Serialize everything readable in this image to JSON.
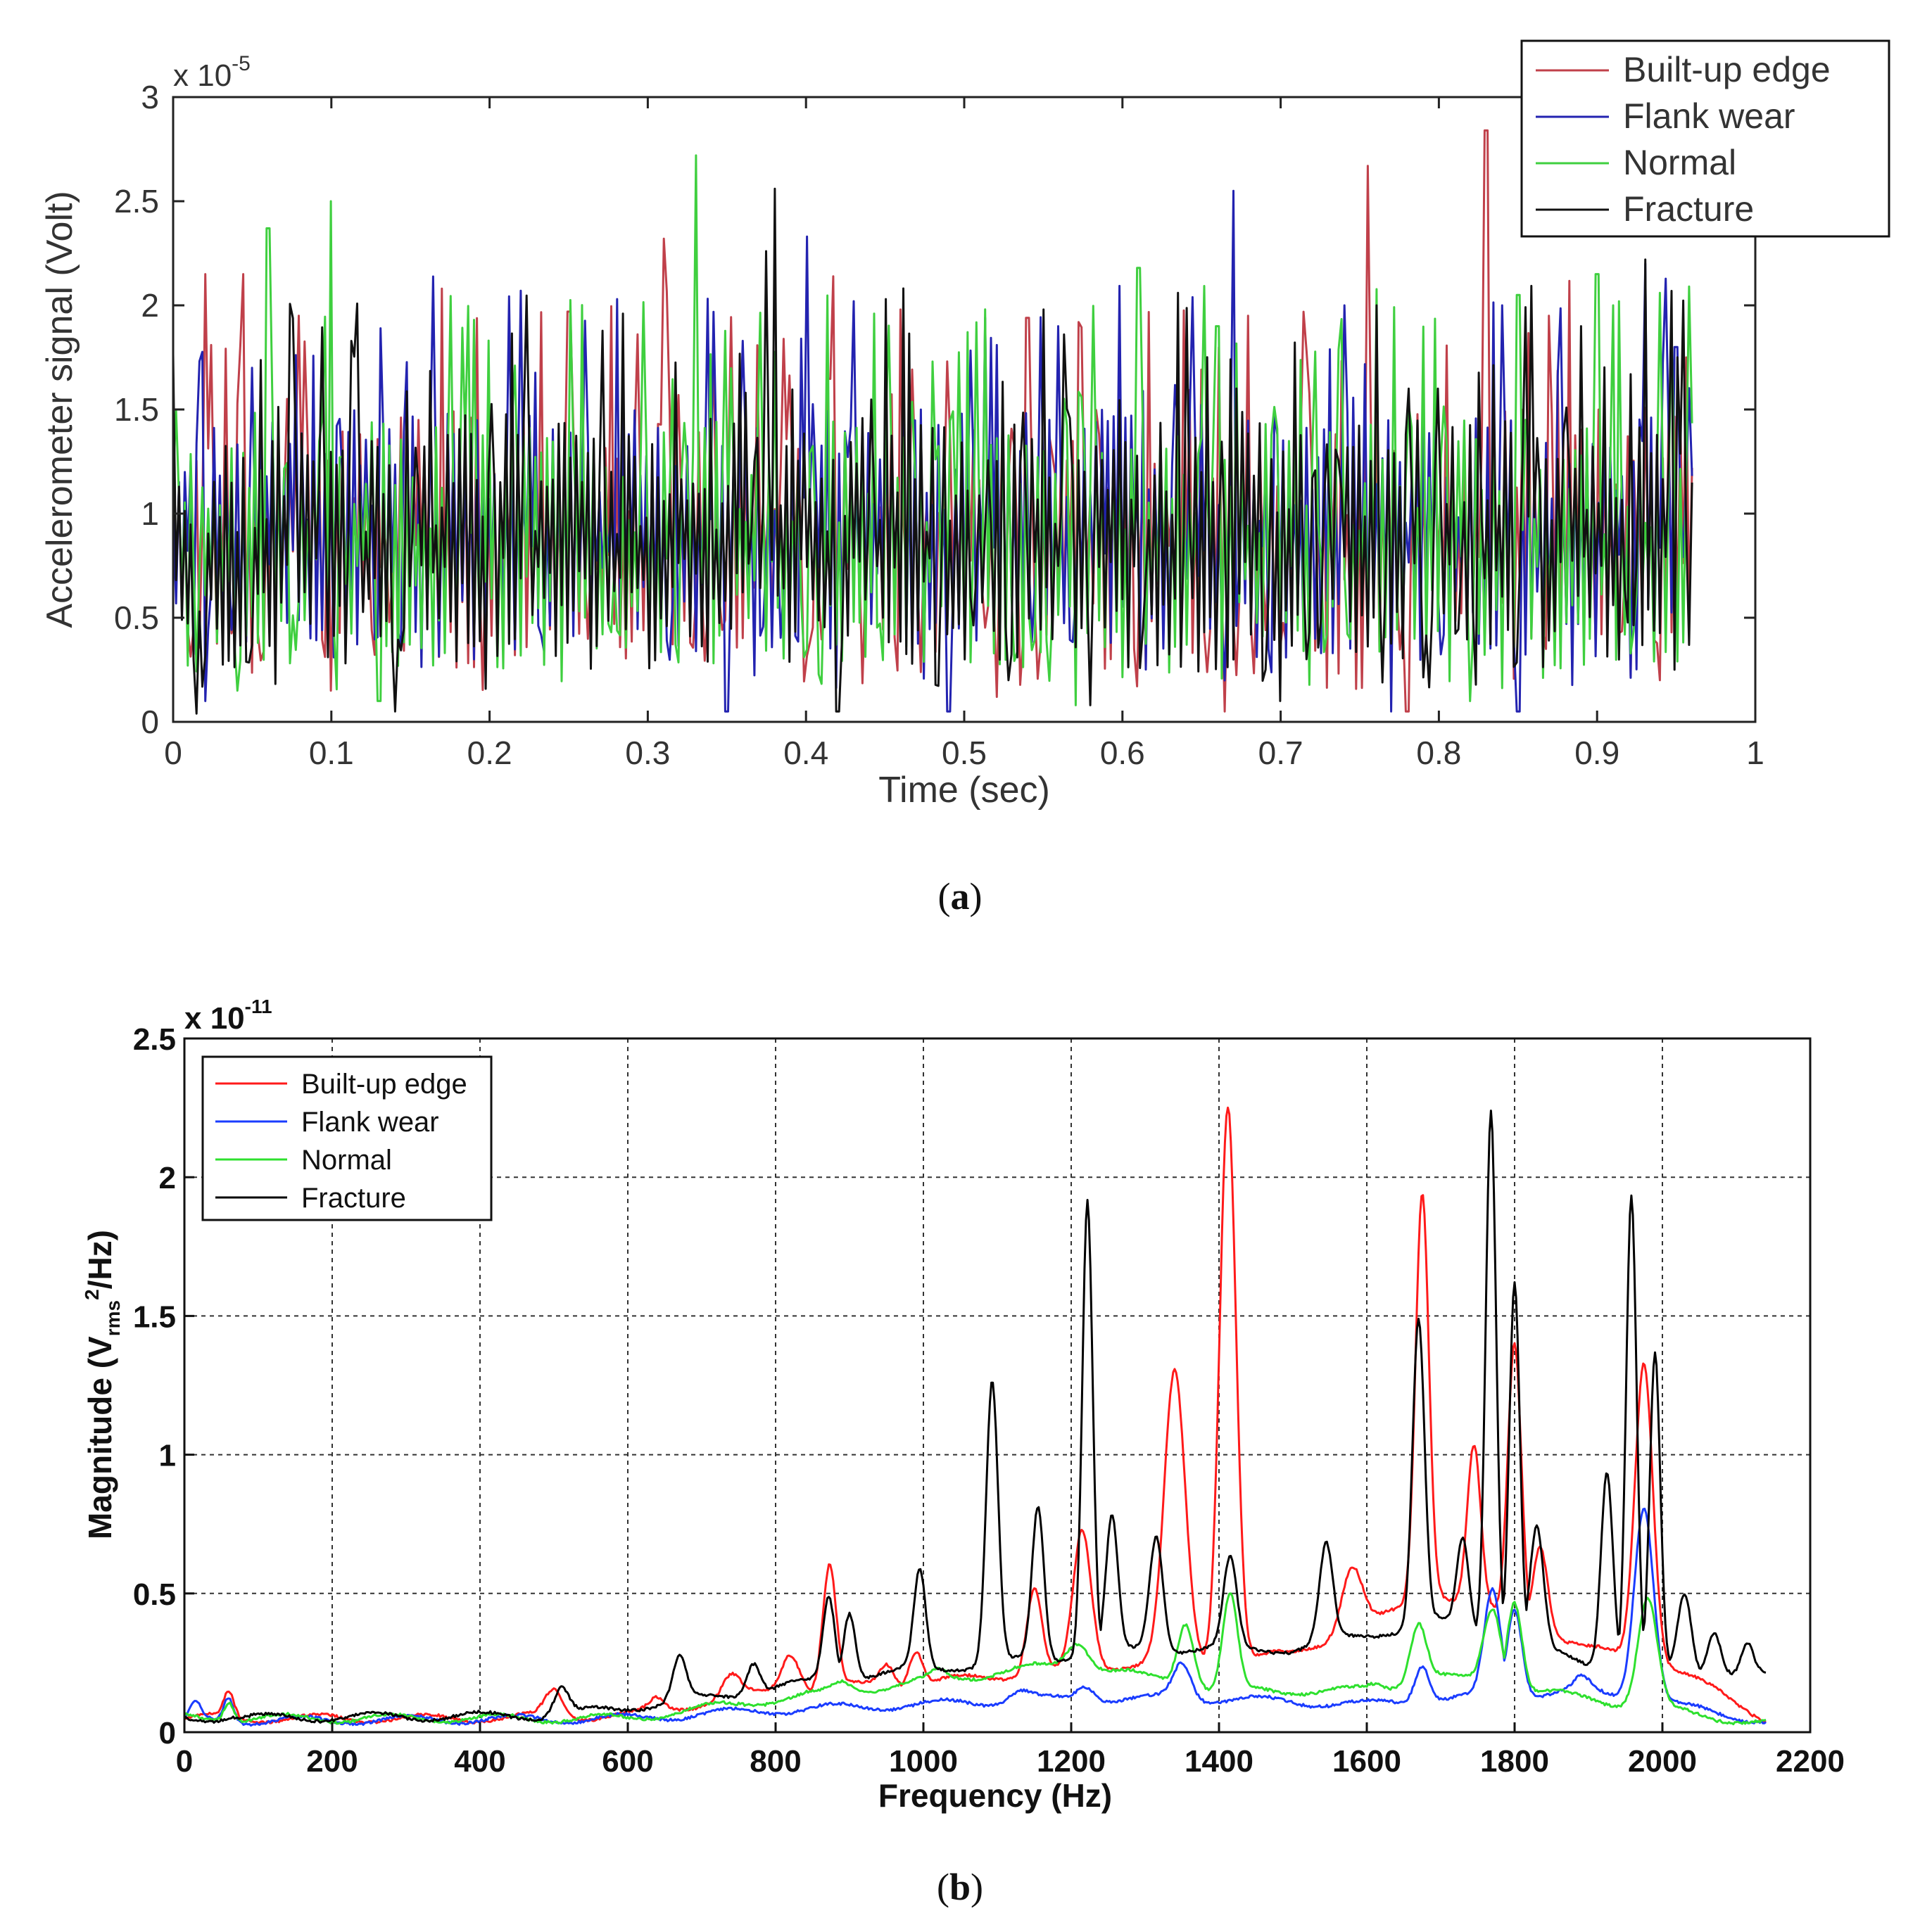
{
  "chart_data": [
    {
      "id": "a",
      "type": "line",
      "panel_label": "a",
      "xlabel": "Time (sec)",
      "ylabel": "Accelerometer signal (Volt)",
      "y_exponent_label": "x 10",
      "y_exponent_power": "-5",
      "xlim": [
        0,
        1
      ],
      "ylim": [
        0,
        3
      ],
      "xticks": [
        0,
        0.1,
        0.2,
        0.3,
        0.4,
        0.5,
        0.6,
        0.7,
        0.8,
        0.9,
        1
      ],
      "xtick_labels": [
        "0",
        "0.1",
        "0.2",
        "0.3",
        "0.4",
        "0.5",
        "0.6",
        "0.7",
        "0.8",
        "0.9",
        "1"
      ],
      "yticks": [
        0,
        0.5,
        1,
        1.5,
        2,
        2.5,
        3
      ],
      "ytick_labels": [
        "0",
        "0.5",
        "1",
        "1.5",
        "2",
        "2.5",
        "3"
      ],
      "grid": false,
      "legend_position": "top-right",
      "x_end": 0.96,
      "series": [
        {
          "name": "Built-up edge",
          "color": "#c0404a",
          "baseline": 0.9,
          "peaks": [
            [
              0.02,
              2.15
            ],
            [
              0.045,
              2.15
            ],
            [
              0.08,
              1.95
            ],
            [
              0.1,
              2.0
            ],
            [
              0.17,
              2.08
            ],
            [
              0.25,
              1.97
            ],
            [
              0.31,
              2.32
            ],
            [
              0.46,
              1.98
            ],
            [
              0.54,
              1.94
            ],
            [
              0.68,
              1.95
            ],
            [
              0.755,
              2.67
            ],
            [
              0.83,
              2.84
            ],
            [
              0.87,
              1.95
            ]
          ],
          "dips": [
            [
              0.1,
              0.15
            ],
            [
              0.52,
              0.12
            ],
            [
              0.665,
              0.05
            ],
            [
              0.78,
              0.05
            ],
            [
              0.94,
              0.2
            ]
          ]
        },
        {
          "name": "Flank wear",
          "color": "#2323b0",
          "baseline": 0.9,
          "peaks": [
            [
              0.05,
              1.7
            ],
            [
              0.22,
              2.07
            ],
            [
              0.28,
              2.03
            ],
            [
              0.4,
              2.33
            ],
            [
              0.43,
              2.02
            ],
            [
              0.56,
              1.9
            ],
            [
              0.67,
              2.55
            ],
            [
              0.74,
              2.0
            ],
            [
              0.84,
              2.0
            ],
            [
              0.93,
              2.2
            ],
            [
              0.95,
              1.8
            ]
          ],
          "dips": [
            [
              0.02,
              0.1
            ],
            [
              0.35,
              0.05
            ],
            [
              0.49,
              0.05
            ],
            [
              0.77,
              0.05
            ],
            [
              0.85,
              0.05
            ]
          ]
        },
        {
          "name": "Normal",
          "color": "#3fcf3f",
          "baseline": 0.85,
          "peaks": [
            [
              0.06,
              2.37
            ],
            [
              0.1,
              2.5
            ],
            [
              0.33,
              2.72
            ],
            [
              0.48,
              1.73
            ],
            [
              0.61,
              2.18
            ],
            [
              0.66,
              1.9
            ],
            [
              0.85,
              2.05
            ],
            [
              0.9,
              2.15
            ],
            [
              0.91,
              2.0
            ],
            [
              0.94,
              2.06
            ]
          ],
          "dips": [
            [
              0.04,
              0.15
            ],
            [
              0.13,
              0.1
            ],
            [
              0.57,
              0.08
            ],
            [
              0.82,
              0.1
            ]
          ]
        },
        {
          "name": "Fracture",
          "color": "#111111",
          "baseline": 0.85,
          "peaks": [
            [
              0.38,
              2.56
            ],
            [
              0.375,
              2.26
            ],
            [
              0.45,
              2.03
            ],
            [
              0.55,
              1.98
            ],
            [
              0.76,
              2.0
            ],
            [
              0.89,
              1.9
            ],
            [
              0.93,
              2.22
            ],
            [
              0.8,
              1.6
            ]
          ],
          "dips": [
            [
              0.015,
              0.04
            ],
            [
              0.14,
              0.05
            ],
            [
              0.42,
              0.05
            ],
            [
              0.58,
              0.08
            ],
            [
              0.7,
              0.1
            ]
          ]
        }
      ]
    },
    {
      "id": "b",
      "type": "line",
      "panel_label": "b",
      "xlabel": "Frequency (Hz)",
      "ylabel_main": "Magnitude (V",
      "ylabel_sub": "rms",
      "ylabel_sup": "2",
      "ylabel_tail": "/Hz)",
      "y_exponent_label": "x 10",
      "y_exponent_power": "-11",
      "xlim": [
        0,
        2200
      ],
      "ylim": [
        0,
        2.5
      ],
      "xticks": [
        0,
        200,
        400,
        600,
        800,
        1000,
        1200,
        1400,
        1600,
        1800,
        2000,
        2200
      ],
      "xtick_labels": [
        "0",
        "200",
        "400",
        "600",
        "800",
        "1000",
        "1200",
        "1400",
        "1600",
        "1800",
        "2000",
        "2200"
      ],
      "yticks": [
        0,
        0.5,
        1,
        1.5,
        2,
        2.5
      ],
      "ytick_labels": [
        "0",
        "0.5",
        "1",
        "1.5",
        "2",
        "2.5"
      ],
      "grid": true,
      "legend_position": "top-left",
      "x_end": 2140,
      "series": [
        {
          "name": "Built-up edge",
          "color": "#ff1a1a",
          "floor": [
            [
              0,
              0.05
            ],
            [
              400,
              0.05
            ],
            [
              600,
              0.06
            ],
            [
              800,
              0.15
            ],
            [
              1000,
              0.18
            ],
            [
              1100,
              0.2
            ],
            [
              1300,
              0.25
            ],
            [
              1500,
              0.28
            ],
            [
              1700,
              0.5
            ],
            [
              1900,
              0.3
            ],
            [
              2000,
              0.25
            ],
            [
              2140,
              0.05
            ]
          ],
          "peaks": [
            [
              60,
              0.14,
              7
            ],
            [
              500,
              0.15,
              12
            ],
            [
              640,
              0.12,
              10
            ],
            [
              740,
              0.2,
              12
            ],
            [
              820,
              0.29,
              12
            ],
            [
              873,
              0.6,
              9
            ],
            [
              950,
              0.25,
              10
            ],
            [
              990,
              0.3,
              9
            ],
            [
              1150,
              0.52,
              10
            ],
            [
              1215,
              0.72,
              12
            ],
            [
              1340,
              1.29,
              14
            ],
            [
              1412,
              2.27,
              11
            ],
            [
              1580,
              0.6,
              14
            ],
            [
              1675,
              1.95,
              9
            ],
            [
              1745,
              1.03,
              9
            ],
            [
              1800,
              1.4,
              9
            ],
            [
              1835,
              0.68,
              10
            ],
            [
              1975,
              1.34,
              12
            ]
          ]
        },
        {
          "name": "Flank wear",
          "color": "#1a3cff",
          "floor": [
            [
              0,
              0.04
            ],
            [
              600,
              0.05
            ],
            [
              800,
              0.08
            ],
            [
              1000,
              0.1
            ],
            [
              1200,
              0.12
            ],
            [
              1400,
              0.12
            ],
            [
              1600,
              0.1
            ],
            [
              1700,
              0.12
            ],
            [
              1900,
              0.15
            ],
            [
              2140,
              0.04
            ]
          ],
          "peaks": [
            [
              15,
              0.1,
              7
            ],
            [
              60,
              0.13,
              7
            ],
            [
              1130,
              0.15,
              15
            ],
            [
              1220,
              0.17,
              12
            ],
            [
              1350,
              0.25,
              12
            ],
            [
              1675,
              0.25,
              10
            ],
            [
              1770,
              0.51,
              11
            ],
            [
              1800,
              0.45,
              10
            ],
            [
              1890,
              0.19,
              10
            ],
            [
              1975,
              0.82,
              13
            ]
          ]
        },
        {
          "name": "Normal",
          "color": "#2ee02e",
          "floor": [
            [
              0,
              0.05
            ],
            [
              600,
              0.05
            ],
            [
              800,
              0.12
            ],
            [
              1000,
              0.18
            ],
            [
              1200,
              0.25
            ],
            [
              1400,
              0.15
            ],
            [
              1600,
              0.15
            ],
            [
              1700,
              0.2
            ],
            [
              1900,
              0.12
            ],
            [
              2140,
              0.03
            ]
          ],
          "peaks": [
            [
              60,
              0.12,
              7
            ],
            [
              890,
              0.18,
              12
            ],
            [
              1020,
              0.22,
              12
            ],
            [
              1210,
              0.33,
              14
            ],
            [
              1355,
              0.4,
              11
            ],
            [
              1415,
              0.49,
              10
            ],
            [
              1610,
              0.17,
              10
            ],
            [
              1670,
              0.4,
              11
            ],
            [
              1770,
              0.45,
              12
            ],
            [
              1800,
              0.48,
              10
            ],
            [
              1980,
              0.48,
              13
            ]
          ]
        },
        {
          "name": "Fracture",
          "color": "#000000",
          "floor": [
            [
              0,
              0.05
            ],
            [
              500,
              0.06
            ],
            [
              700,
              0.12
            ],
            [
              900,
              0.2
            ],
            [
              1100,
              0.25
            ],
            [
              1300,
              0.3
            ],
            [
              1500,
              0.3
            ],
            [
              1700,
              0.4
            ],
            [
              1900,
              0.25
            ],
            [
              2140,
              0.2
            ]
          ],
          "peaks": [
            [
              60,
              0.06,
              8
            ],
            [
              510,
              0.16,
              10
            ],
            [
              670,
              0.27,
              9
            ],
            [
              770,
              0.26,
              9
            ],
            [
              872,
              0.49,
              8
            ],
            [
              900,
              0.44,
              8
            ],
            [
              995,
              0.58,
              8
            ],
            [
              1093,
              1.26,
              8
            ],
            [
              1155,
              0.81,
              8
            ],
            [
              1222,
              1.92,
              7
            ],
            [
              1255,
              0.77,
              8
            ],
            [
              1315,
              0.71,
              9
            ],
            [
              1415,
              0.62,
              9
            ],
            [
              1545,
              0.67,
              9
            ],
            [
              1670,
              1.49,
              8
            ],
            [
              1730,
              0.7,
              8
            ],
            [
              1768,
              2.25,
              7
            ],
            [
              1800,
              1.63,
              7
            ],
            [
              1830,
              0.73,
              9
            ],
            [
              1925,
              0.95,
              8
            ],
            [
              1958,
              1.93,
              7
            ],
            [
              1990,
              1.35,
              7
            ],
            [
              2030,
              0.5,
              9
            ],
            [
              2070,
              0.37,
              9
            ],
            [
              2115,
              0.31,
              8
            ]
          ]
        }
      ]
    }
  ]
}
